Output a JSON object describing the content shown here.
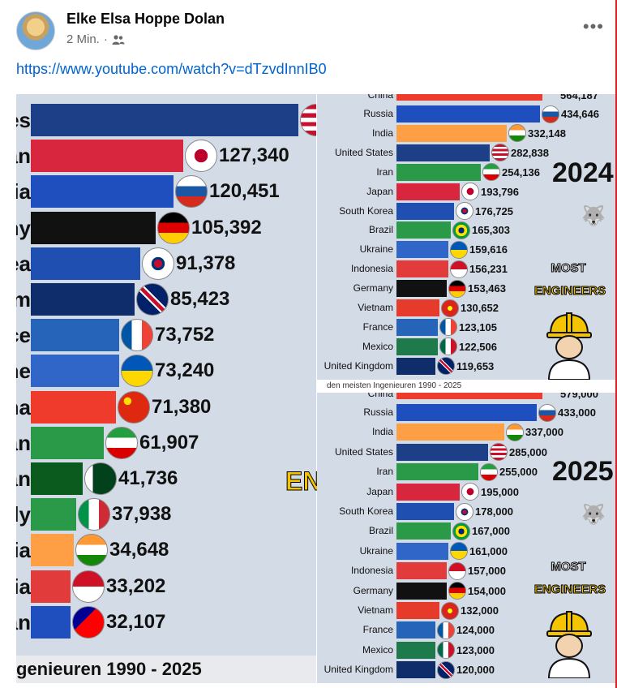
{
  "post": {
    "author": "Elke Elsa Hoppe Dolan",
    "time": "2 Min.",
    "audience_icon": "friends-icon",
    "link": "https://www.youtube.com/watch?v=dTzvdInnIB0",
    "more_icon": "more-options-icon"
  },
  "left_chart": {
    "footer": "genieuren 1990 - 2025",
    "badge_text": "EN",
    "rows": [
      {
        "label": "es",
        "value": "",
        "color": "#1d3f87",
        "flag": "us",
        "fill": 0.88
      },
      {
        "label": "an",
        "value": "127,340",
        "color": "#d7263d",
        "flag": "jp",
        "fill": 0.5
      },
      {
        "label": "ia",
        "value": "120,451",
        "color": "#1f4fbf",
        "flag": "ru",
        "fill": 0.47
      },
      {
        "label": "ny",
        "value": "105,392",
        "color": "#111111",
        "flag": "de",
        "fill": 0.41
      },
      {
        "label": "ea",
        "value": "91,378",
        "color": "#1f4fb0",
        "flag": "kr",
        "fill": 0.36
      },
      {
        "label": "m",
        "value": "85,423",
        "color": "#0f2d6b",
        "flag": "gb",
        "fill": 0.34
      },
      {
        "label": "ce",
        "value": "73,752",
        "color": "#2564b8",
        "flag": "fr",
        "fill": 0.29
      },
      {
        "label": "ne",
        "value": "73,240",
        "color": "#2f66c8",
        "flag": "ua",
        "fill": 0.29
      },
      {
        "label": "na",
        "value": "71,380",
        "color": "#ee3b2b",
        "flag": "cn",
        "fill": 0.28
      },
      {
        "label": "an",
        "value": "61,907",
        "color": "#2a9a48",
        "flag": "ir",
        "fill": 0.24
      },
      {
        "label": "an",
        "value": "41,736",
        "color": "#0b5a1e",
        "flag": "pk",
        "fill": 0.17
      },
      {
        "label": "ly",
        "value": "37,938",
        "color": "#2a9a48",
        "flag": "it",
        "fill": 0.15
      },
      {
        "label": "ia",
        "value": "34,648",
        "color": "#ff9f45",
        "flag": "in",
        "fill": 0.14
      },
      {
        "label": "ia",
        "value": "33,202",
        "color": "#e23b3b",
        "flag": "id",
        "fill": 0.13
      },
      {
        "label": "an",
        "value": "32,107",
        "color": "#1f4fbf",
        "flag": "tw",
        "fill": 0.13
      }
    ]
  },
  "chart_2024": {
    "year": "2024",
    "most": "MOST",
    "engineers": "ENGINEERS",
    "top_cut_label": "China",
    "top_cut_value": "564,187",
    "rows": [
      {
        "label": "Russia",
        "value": "434,646",
        "color": "#1f4fbf",
        "flag": "ru",
        "fill": 0.77
      },
      {
        "label": "India",
        "value": "332,148",
        "color": "#ff9f45",
        "flag": "in",
        "fill": 0.59
      },
      {
        "label": "United States",
        "value": "282,838",
        "color": "#1d3f87",
        "flag": "us",
        "fill": 0.5
      },
      {
        "label": "Iran",
        "value": "254,136",
        "color": "#2a9a48",
        "flag": "ir",
        "fill": 0.45
      },
      {
        "label": "Japan",
        "value": "193,796",
        "color": "#d7263d",
        "flag": "jp",
        "fill": 0.34
      },
      {
        "label": "South Korea",
        "value": "176,725",
        "color": "#1f4fb0",
        "flag": "kr",
        "fill": 0.31
      },
      {
        "label": "Brazil",
        "value": "165,303",
        "color": "#2a9a48",
        "flag": "br",
        "fill": 0.29
      },
      {
        "label": "Ukraine",
        "value": "159,616",
        "color": "#2f66c8",
        "flag": "ua",
        "fill": 0.28
      },
      {
        "label": "Indonesia",
        "value": "156,231",
        "color": "#e23b3b",
        "flag": "id",
        "fill": 0.28
      },
      {
        "label": "Germany",
        "value": "153,463",
        "color": "#111111",
        "flag": "de",
        "fill": 0.27
      },
      {
        "label": "Vietnam",
        "value": "130,652",
        "color": "#e63b2b",
        "flag": "vn",
        "fill": 0.23
      },
      {
        "label": "France",
        "value": "123,105",
        "color": "#2564b8",
        "flag": "fr",
        "fill": 0.22
      },
      {
        "label": "Mexico",
        "value": "122,506",
        "color": "#1e7a4a",
        "flag": "mx",
        "fill": 0.22
      },
      {
        "label": "United Kingdom",
        "value": "119,653",
        "color": "#0f2d6b",
        "flag": "gb",
        "fill": 0.21
      }
    ],
    "strip": "den meisten Ingenieuren 1990 - 2025"
  },
  "chart_2025": {
    "year": "2025",
    "most": "MOST",
    "engineers": "ENGINEERS",
    "top_cut_label": "China",
    "top_cut_value": "579,000",
    "rows": [
      {
        "label": "Russia",
        "value": "433,000",
        "color": "#1f4fbf",
        "flag": "ru",
        "fill": 0.75
      },
      {
        "label": "India",
        "value": "337,000",
        "color": "#ff9f45",
        "flag": "in",
        "fill": 0.58
      },
      {
        "label": "United States",
        "value": "285,000",
        "color": "#1d3f87",
        "flag": "us",
        "fill": 0.49
      },
      {
        "label": "Iran",
        "value": "255,000",
        "color": "#2a9a48",
        "flag": "ir",
        "fill": 0.44
      },
      {
        "label": "Japan",
        "value": "195,000",
        "color": "#d7263d",
        "flag": "jp",
        "fill": 0.34
      },
      {
        "label": "South Korea",
        "value": "178,000",
        "color": "#1f4fb0",
        "flag": "kr",
        "fill": 0.31
      },
      {
        "label": "Brazil",
        "value": "167,000",
        "color": "#2a9a48",
        "flag": "br",
        "fill": 0.29
      },
      {
        "label": "Ukraine",
        "value": "161,000",
        "color": "#2f66c8",
        "flag": "ua",
        "fill": 0.28
      },
      {
        "label": "Indonesia",
        "value": "157,000",
        "color": "#e23b3b",
        "flag": "id",
        "fill": 0.27
      },
      {
        "label": "Germany",
        "value": "154,000",
        "color": "#111111",
        "flag": "de",
        "fill": 0.27
      },
      {
        "label": "Vietnam",
        "value": "132,000",
        "color": "#e63b2b",
        "flag": "vn",
        "fill": 0.23
      },
      {
        "label": "France",
        "value": "124,000",
        "color": "#2564b8",
        "flag": "fr",
        "fill": 0.21
      },
      {
        "label": "Mexico",
        "value": "123,000",
        "color": "#1e7a4a",
        "flag": "mx",
        "fill": 0.21
      },
      {
        "label": "United Kingdom",
        "value": "120,000",
        "color": "#0f2d6b",
        "flag": "gb",
        "fill": 0.21
      }
    ]
  }
}
